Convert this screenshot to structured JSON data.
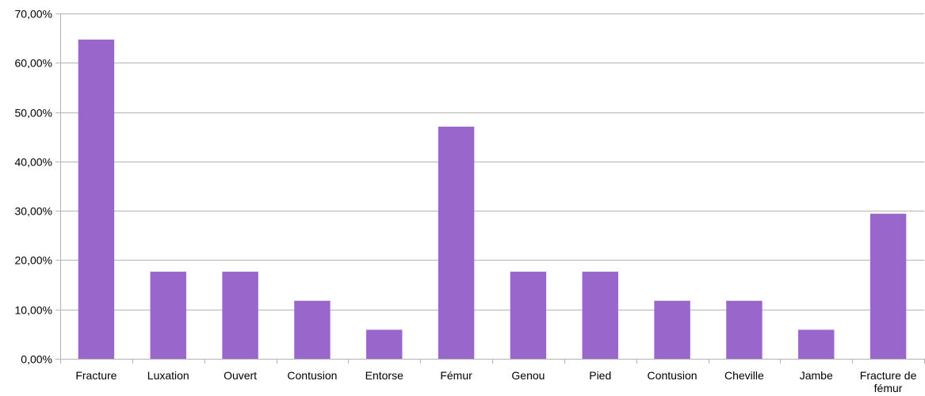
{
  "chart_data": {
    "type": "bar",
    "title": "",
    "xlabel": "",
    "ylabel": "",
    "categories": [
      [
        "Fracture"
      ],
      [
        "Luxation"
      ],
      [
        "Ouvert"
      ],
      [
        "Contusion"
      ],
      [
        "Entorse"
      ],
      [
        "Fémur"
      ],
      [
        "Genou"
      ],
      [
        "Pied"
      ],
      [
        "Contusion"
      ],
      [
        "Cheville"
      ],
      [
        "Jambe"
      ],
      [
        "Fracture de",
        "fémur"
      ]
    ],
    "values": [
      64.71,
      17.65,
      17.65,
      11.76,
      5.88,
      47.06,
      17.65,
      17.65,
      11.76,
      11.76,
      5.88,
      29.41
    ],
    "ylim": [
      0,
      70
    ],
    "yticks": [
      0,
      10,
      20,
      30,
      40,
      50,
      60,
      70
    ],
    "ytick_labels": [
      "0,00%",
      "10,00%",
      "20,00%",
      "30,00%",
      "40,00%",
      "50,00%",
      "60,00%",
      "70,00%"
    ],
    "grid": true,
    "legend": "none",
    "bar_color": "#9966cc",
    "grid_color": "#b3b3b3"
  }
}
